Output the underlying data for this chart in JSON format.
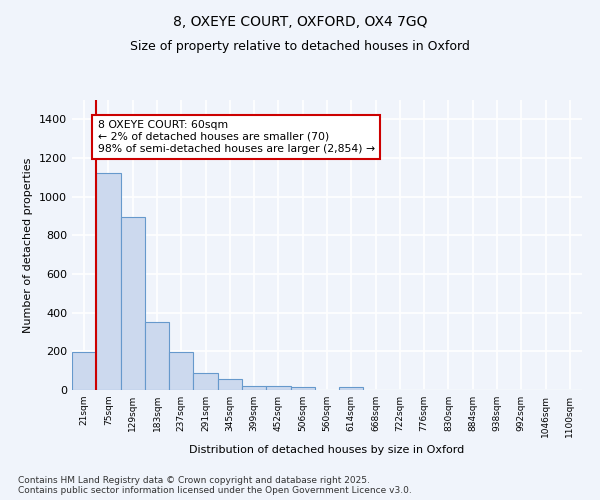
{
  "title1": "8, OXEYE COURT, OXFORD, OX4 7GQ",
  "title2": "Size of property relative to detached houses in Oxford",
  "xlabel": "Distribution of detached houses by size in Oxford",
  "ylabel": "Number of detached properties",
  "bar_color": "#ccd9ee",
  "bar_edge_color": "#6699cc",
  "bin_labels": [
    "21sqm",
    "75sqm",
    "129sqm",
    "183sqm",
    "237sqm",
    "291sqm",
    "345sqm",
    "399sqm",
    "452sqm",
    "506sqm",
    "560sqm",
    "614sqm",
    "668sqm",
    "722sqm",
    "776sqm",
    "830sqm",
    "884sqm",
    "938sqm",
    "992sqm",
    "1046sqm",
    "1100sqm"
  ],
  "bar_values": [
    198,
    1125,
    895,
    350,
    198,
    90,
    58,
    22,
    20,
    15,
    0,
    15,
    0,
    0,
    0,
    0,
    0,
    0,
    0,
    0,
    0
  ],
  "ylim": [
    0,
    1500
  ],
  "yticks": [
    0,
    200,
    400,
    600,
    800,
    1000,
    1200,
    1400
  ],
  "annotation_text": "8 OXEYE COURT: 60sqm\n← 2% of detached houses are smaller (70)\n98% of semi-detached houses are larger (2,854) →",
  "vline_x_idx": 1,
  "red_line_color": "#cc0000",
  "annotation_box_color": "#ffffff",
  "annotation_box_edge": "#cc0000",
  "background_color": "#f0f4fb",
  "plot_bg_color": "#f0f4fb",
  "grid_color": "#ffffff",
  "footer1": "Contains HM Land Registry data © Crown copyright and database right 2025.",
  "footer2": "Contains public sector information licensed under the Open Government Licence v3.0."
}
